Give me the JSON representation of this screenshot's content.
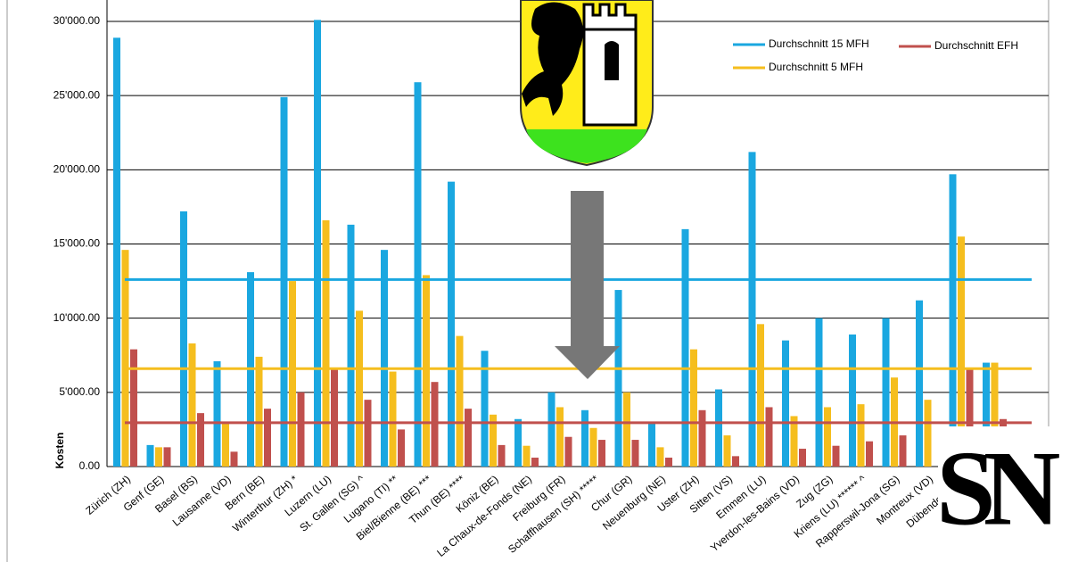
{
  "chart_data": {
    "type": "bar",
    "y_label": "Kosten",
    "categories": [
      "Zürich (ZH)",
      "Genf (GE)",
      "Basel (BS)",
      "Lausanne (VD)",
      "Bern (BE)",
      "Winterthur (ZH) *",
      "Luzern (LU)",
      "St. Gallen (SG) ^",
      "Lugano (TI) **",
      "Biel/Bienne (BE) ***",
      "Thun (BE) ****",
      "Köniz (BE)",
      "La Chaux-de-Fonds (NE)",
      "Freiburg (FR)",
      "Schaffhausen (SH) *****",
      "Chur (GR)",
      "Neuenburg (NE)",
      "Uster (ZH)",
      "Sitten (VS)",
      "Emmen (LU)",
      "Yverdon-les-Bains (VD)",
      "Zug (ZG)",
      "Kriens (LU) ****** ^",
      "Rapperswil-Jona (SG)",
      "Montreux (VD)",
      "Dübendorf (ZH)",
      null
    ],
    "series": [
      {
        "color": "#1aa7e0",
        "values": [
          28900,
          1450,
          17200,
          7100,
          13100,
          24900,
          30100,
          16300,
          14600,
          25900,
          19200,
          7800,
          3200,
          5000,
          3800,
          11900,
          2900,
          16000,
          5200,
          21200,
          8500,
          10000,
          8900,
          10000,
          11200,
          19700,
          7000
        ]
      },
      {
        "color": "#f5be1e",
        "values": [
          14600,
          1300,
          8300,
          3000,
          7400,
          12500,
          16600,
          10500,
          6400,
          12900,
          8800,
          3500,
          1400,
          4000,
          2600,
          5000,
          1300,
          7900,
          2100,
          9600,
          3400,
          4000,
          4200,
          6000,
          4500,
          15500,
          7000
        ]
      },
      {
        "color": "#c0504d",
        "values": [
          7900,
          1300,
          3600,
          1000,
          3900,
          5000,
          6600,
          4500,
          2500,
          5700,
          3900,
          1450,
          600,
          2000,
          1800,
          1800,
          600,
          3800,
          700,
          4000,
          1200,
          1400,
          1700,
          2100,
          null,
          6600,
          3200
        ]
      }
    ],
    "average_lines": [
      {
        "name": "Durchschnitt 15 MFH",
        "color": "#1aa7e0",
        "value": 12600
      },
      {
        "name": "Durchschnitt EFH",
        "color": "#c0504d",
        "value": 2950
      },
      {
        "name": "Durchschnitt 5 MFH",
        "color": "#f5be1e",
        "value": 6600
      }
    ],
    "ylim": [
      0,
      30000
    ],
    "yticks": [
      {
        "value": 0,
        "label": "0.00"
      },
      {
        "value": 5000,
        "label": "5'000.00"
      },
      {
        "value": 10000,
        "label": "10'000.00"
      },
      {
        "value": 15000,
        "label": "15'000.00"
      },
      {
        "value": 20000,
        "label": "20'000.00"
      },
      {
        "value": 25000,
        "label": "25'000.00"
      },
      {
        "value": 30000,
        "label": "30'000.00"
      }
    ],
    "grid": true
  },
  "logo": "SN"
}
